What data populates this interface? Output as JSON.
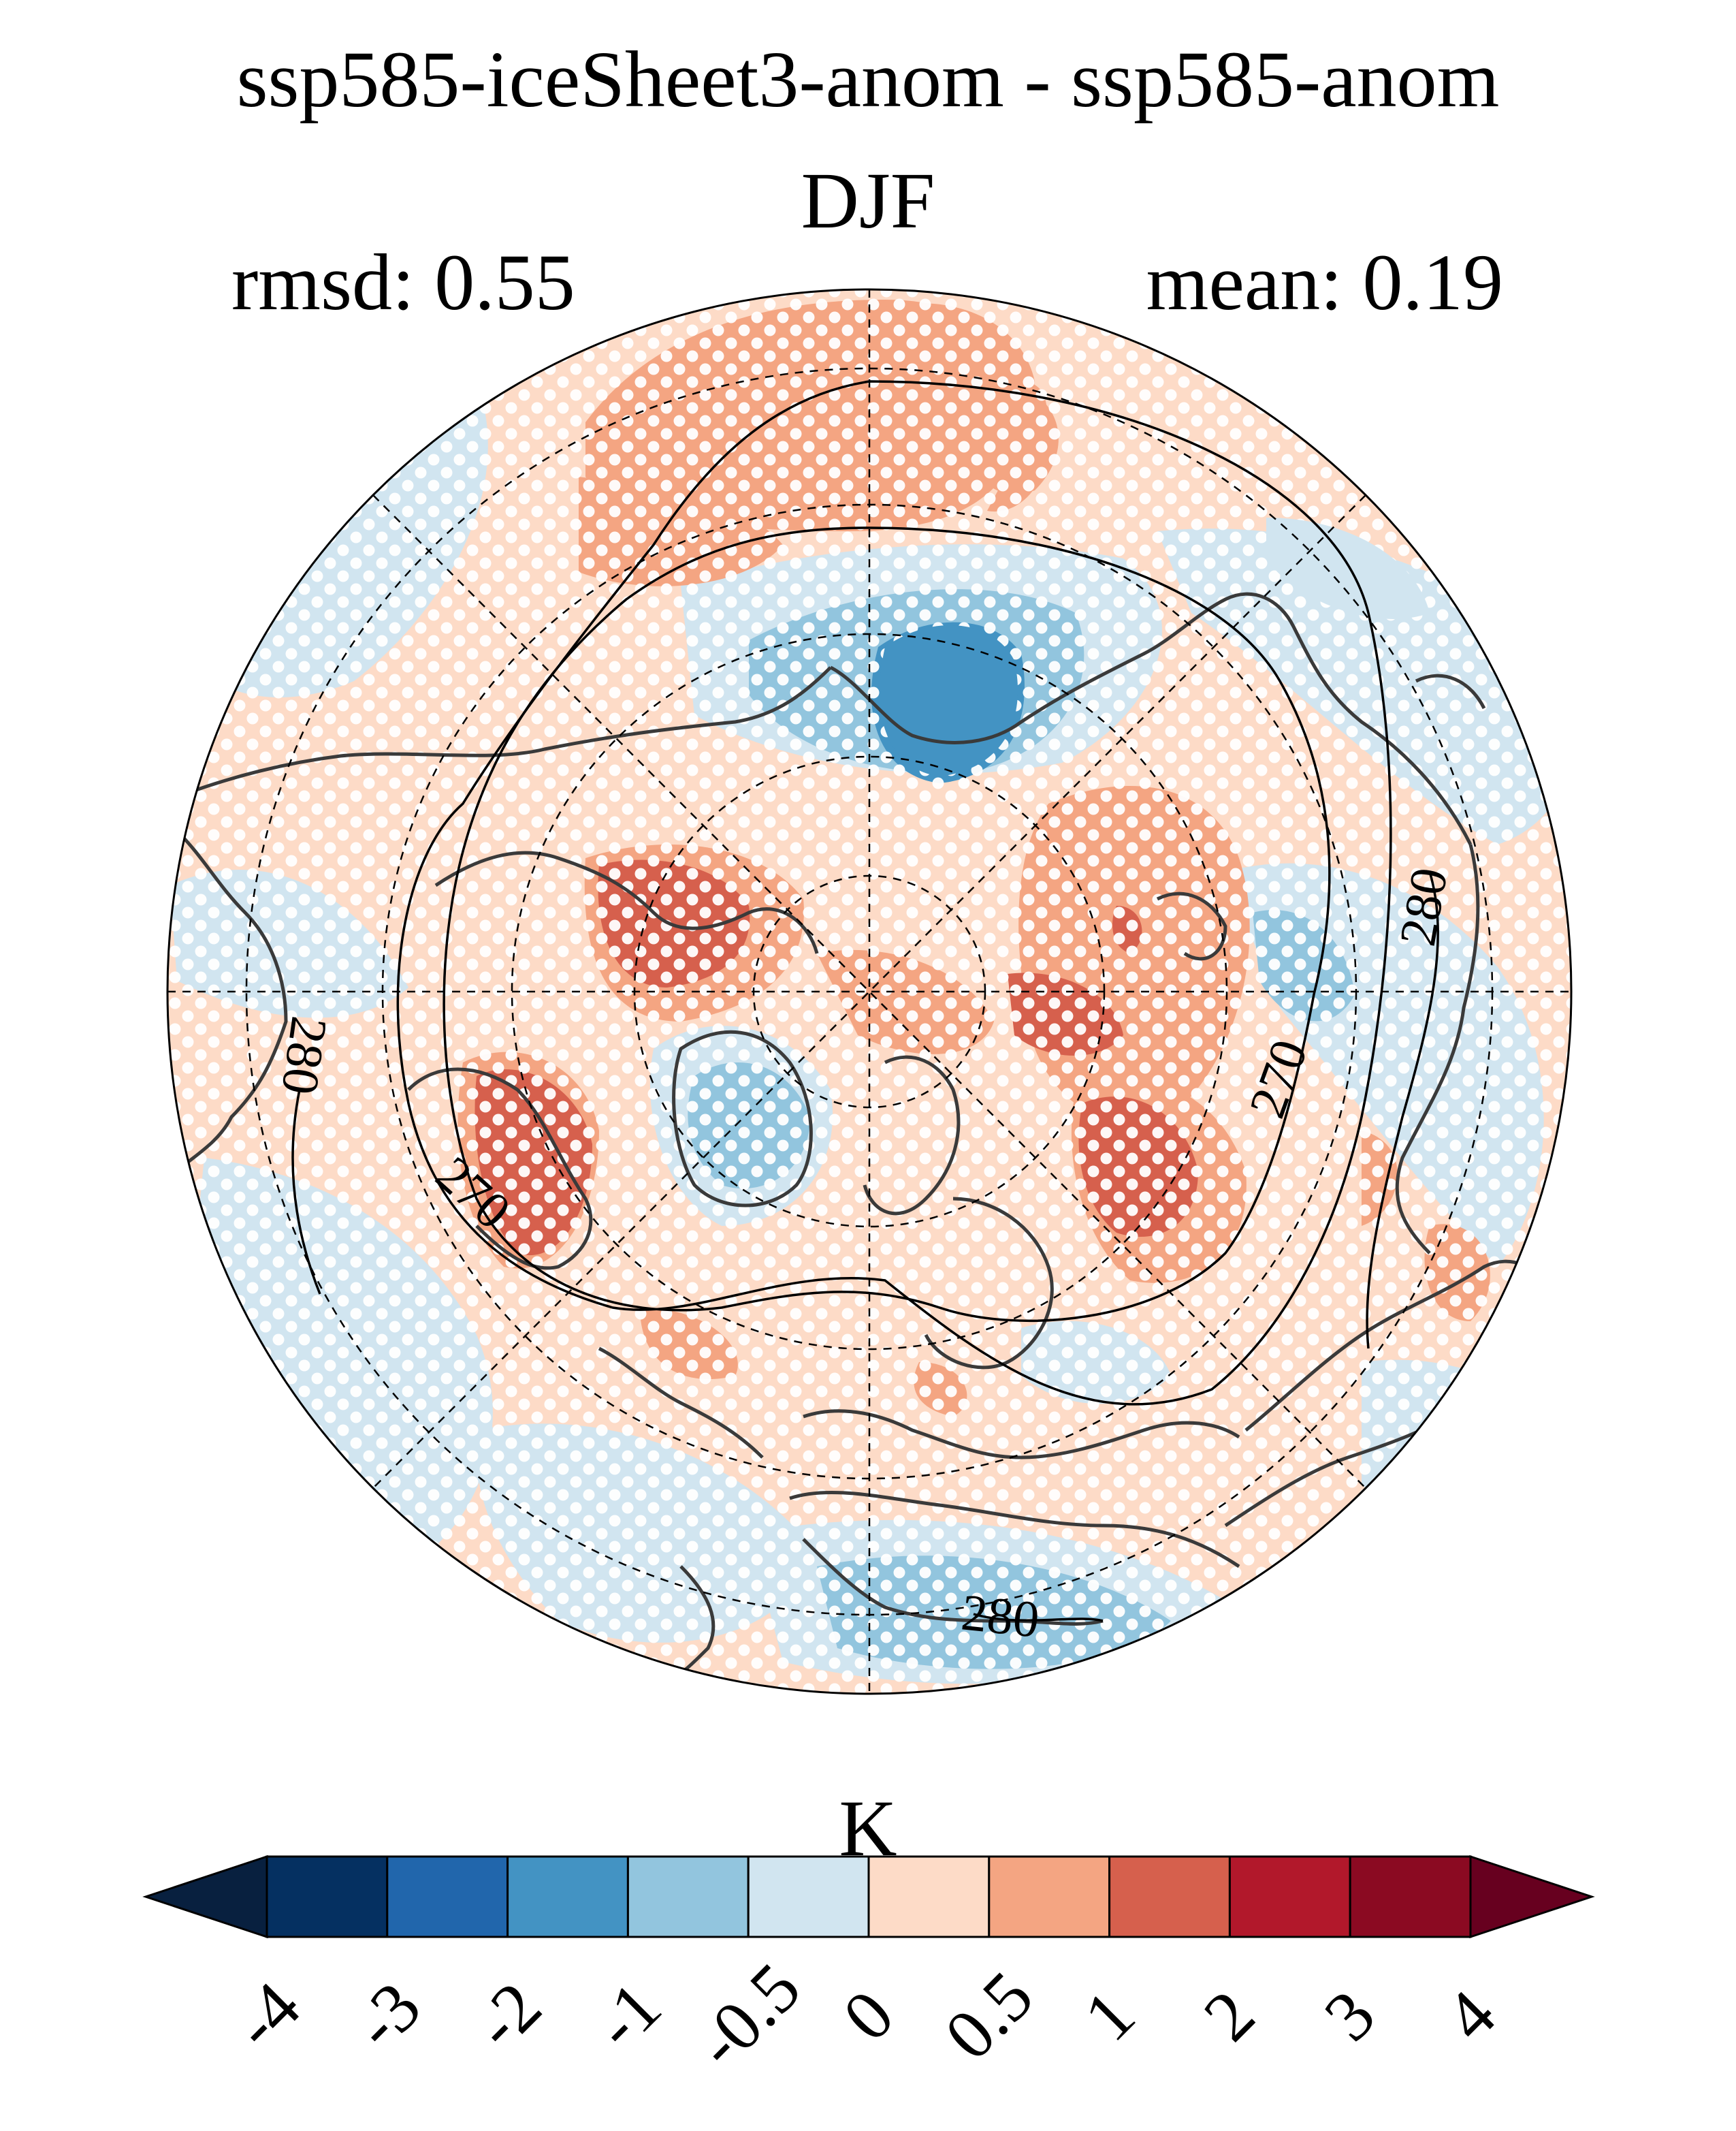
{
  "title": {
    "line1": "ssp585-iceSheet3-anom - ssp585-anom",
    "line2": "DJF",
    "rmsd": "rmsd: 0.55",
    "mean": "mean: 0.19"
  },
  "map": {
    "projection": "north-polar-stereographic",
    "contour_labels": [
      "280",
      "270",
      "270",
      "280",
      "280"
    ],
    "palette": {
      "below": "#08203f",
      "c1": "#053061",
      "c2": "#2166ac",
      "c3": "#4393c3",
      "c4": "#92c5de",
      "c5": "#d1e5f0",
      "c6": "#fddbc7",
      "c7": "#f4a582",
      "c8": "#d6604d",
      "c9": "#b2182b",
      "c10": "#8b0a22",
      "above": "#67001f"
    },
    "stipple_color": "#ffffff",
    "coastline_color": "#3a3a3a"
  },
  "colorbar": {
    "unit": "K",
    "ticks": [
      "-4",
      "-3",
      "-2",
      "-1",
      "-0.5",
      "0",
      "0.5",
      "1",
      "2",
      "3",
      "4"
    ],
    "bin_colors": [
      "#053061",
      "#2166ac",
      "#4393c3",
      "#92c5de",
      "#d1e5f0",
      "#fddbc7",
      "#f4a582",
      "#d6604d",
      "#b2182b",
      "#8b0a22"
    ],
    "extend_low_color": "#08203f",
    "extend_high_color": "#67001f"
  }
}
